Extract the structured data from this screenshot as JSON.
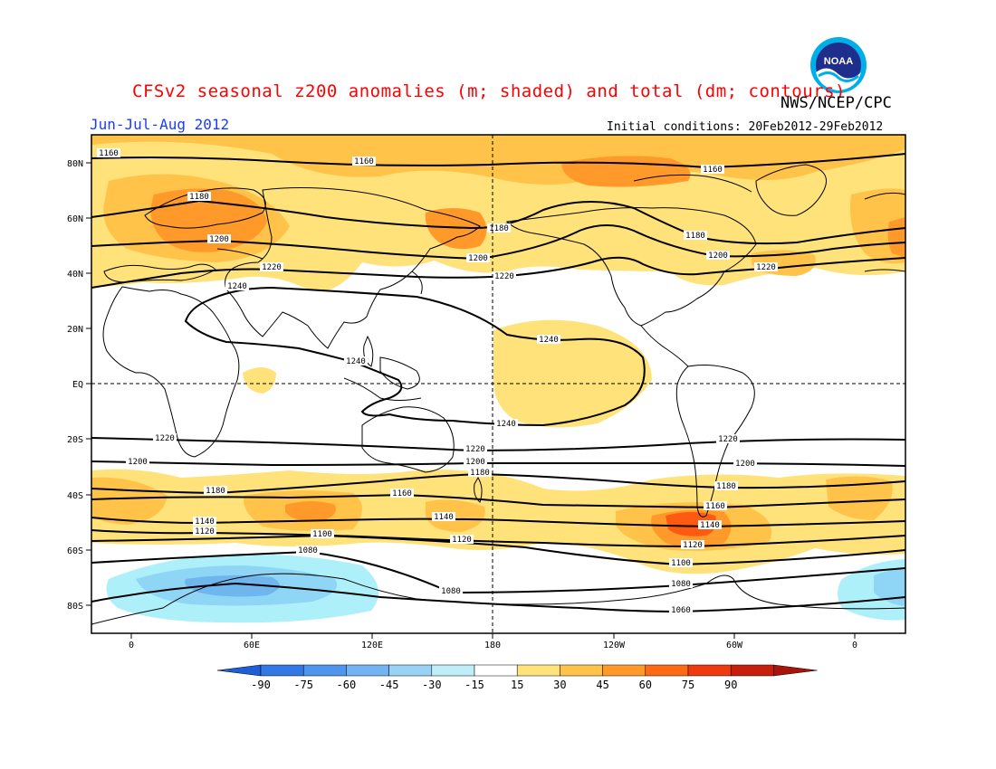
{
  "title": "CFSv2 seasonal z200 anomalies (m; shaded) and total (dm; contours)",
  "organization": "NWS/NCEP/CPC",
  "season": "Jun-Jul-Aug 2012",
  "initial_conditions": "Initial conditions: 20Feb2012-29Feb2012",
  "logo_text": "NOAA",
  "colors": {
    "title": "#ff0000",
    "season": "#1a3cff",
    "pos15": "#ffe27a",
    "pos30": "#ffc34a",
    "pos45": "#ff9a2a",
    "pos60": "#ff5a12",
    "neg15": "#aef0fa",
    "neg30": "#8fd5f5",
    "neg45": "#6fb6ee",
    "contour": "#000000",
    "land": "#000000"
  },
  "map": {
    "lat_labels": [
      "80N",
      "60N",
      "40N",
      "20N",
      "EQ",
      "20S",
      "40S",
      "60S",
      "80S"
    ],
    "lon_labels": [
      "0",
      "60E",
      "120E",
      "180",
      "120W",
      "60W",
      "0"
    ]
  },
  "contours": [
    {
      "value": "1060",
      "labels": [
        [
          "1060",
          752,
          676
        ]
      ]
    },
    {
      "value": "1080",
      "labels": [
        [
          "1080",
          340,
          610
        ],
        [
          "1080",
          498,
          655
        ],
        [
          "1080",
          752,
          647
        ]
      ]
    },
    {
      "value": "1100",
      "labels": [
        [
          "1100",
          356,
          592
        ],
        [
          "1100",
          752,
          624
        ]
      ]
    },
    {
      "value": "1120",
      "labels": [
        [
          "1120",
          226,
          589
        ],
        [
          "1120",
          510,
          598
        ],
        [
          "1120",
          765,
          604
        ]
      ]
    },
    {
      "value": "1140",
      "labels": [
        [
          "1140",
          226,
          578
        ],
        [
          "1140",
          490,
          573
        ],
        [
          "1140",
          784,
          582
        ]
      ]
    },
    {
      "value": "1160",
      "labels": [
        [
          "1160",
          444,
          547
        ],
        [
          "1160",
          790,
          561
        ],
        [
          "1160",
          120,
          171
        ],
        [
          "1160",
          402,
          180
        ],
        [
          "1160",
          787,
          189
        ]
      ]
    },
    {
      "value": "1180",
      "labels": [
        [
          "1180",
          238,
          544
        ],
        [
          "1180",
          530,
          524
        ],
        [
          "1180",
          802,
          539
        ],
        [
          "1180",
          220,
          219
        ],
        [
          "1180",
          551,
          254
        ],
        [
          "1180",
          768,
          262
        ]
      ]
    },
    {
      "value": "1200",
      "labels": [
        [
          "1200",
          152,
          512
        ],
        [
          "1200",
          525,
          512
        ],
        [
          "1200",
          823,
          514
        ],
        [
          "1200",
          242,
          266
        ],
        [
          "1200",
          528,
          287
        ],
        [
          "1200",
          793,
          284
        ]
      ]
    },
    {
      "value": "1220",
      "labels": [
        [
          "1220",
          182,
          486
        ],
        [
          "1220",
          525,
          498
        ],
        [
          "1220",
          804,
          487
        ],
        [
          "1220",
          300,
          297
        ],
        [
          "1220",
          557,
          307
        ],
        [
          "1220",
          846,
          297
        ]
      ]
    },
    {
      "value": "1240",
      "labels": [
        [
          "1240",
          262,
          318
        ],
        [
          "1240",
          393,
          401
        ],
        [
          "1240",
          606,
          377
        ],
        [
          "1240",
          559,
          470
        ]
      ]
    }
  ],
  "colorbar": {
    "labels": [
      "-90",
      "-75",
      "-60",
      "-45",
      "-30",
      "-15",
      "15",
      "30",
      "45",
      "60",
      "75",
      "90"
    ],
    "colors": [
      "#1e5fd8",
      "#3478e6",
      "#4f95ee",
      "#72b4f3",
      "#99d2f7",
      "#bfeef9",
      "#ffffff",
      "#ffe27a",
      "#ffc34a",
      "#ff9a2a",
      "#ff6a14",
      "#ee3a0e",
      "#c81e0c",
      "#a8140a"
    ]
  }
}
